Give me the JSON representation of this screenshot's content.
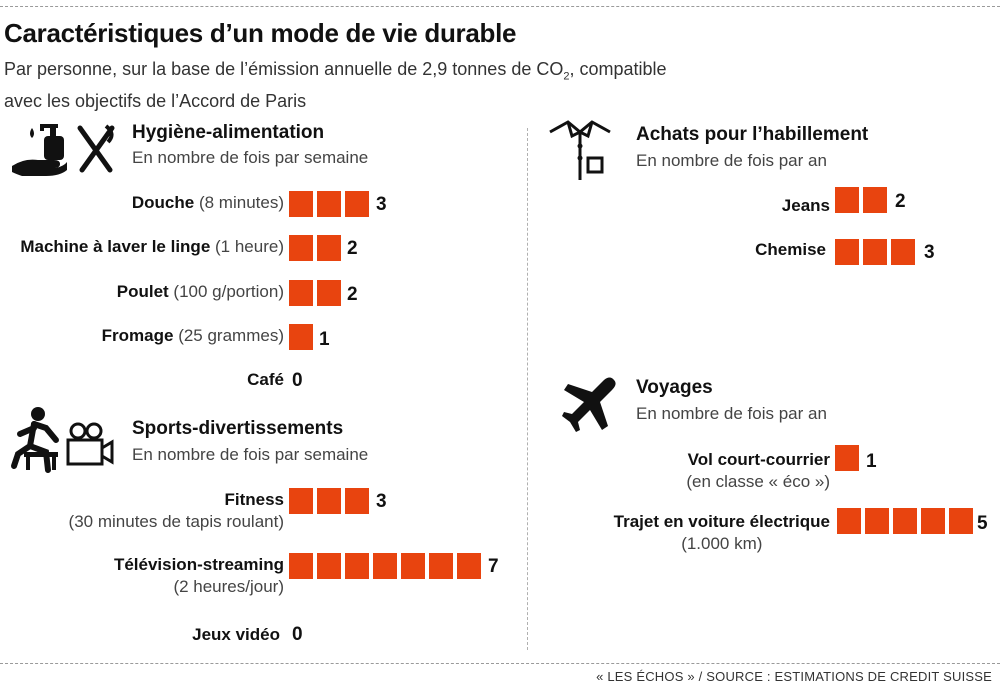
{
  "title": "Caractéristiques d’un mode de vie durable",
  "subtitle": {
    "line1_before": "Par personne, sur la base de l’émission annuelle de 2,9 tonnes de CO",
    "line1_sub": "2",
    "line1_after": ", compatible",
    "line2": "avec les objectifs de l’Accord de Paris"
  },
  "source": "« LES ÉCHOS » / SOURCE : ESTIMATIONS DE CREDIT SUISSE",
  "colors": {
    "bar": "#e8440f",
    "text": "#111111",
    "muted": "#444444"
  },
  "icons": [
    "hand-soap-icon",
    "cutlery-icon",
    "runner-icon",
    "video-camera-icon",
    "shirt-icon",
    "airplane-icon"
  ],
  "chart_data": [
    {
      "type": "bar",
      "orientation": "horizontal",
      "title": "Hygiène-alimentation",
      "subtitle": "En nombre de fois par semaine",
      "items": [
        {
          "label": "Douche",
          "detail": "(8 minutes)",
          "value": 3
        },
        {
          "label": "Machine à laver le linge",
          "detail": "(1 heure)",
          "value": 2
        },
        {
          "label": "Poulet",
          "detail": "(100 g/portion)",
          "value": 2
        },
        {
          "label": "Fromage",
          "detail": "(25 grammes)",
          "value": 1
        },
        {
          "label": "Café",
          "detail": "",
          "value": 0
        }
      ]
    },
    {
      "type": "bar",
      "orientation": "horizontal",
      "title": "Sports-divertissements",
      "subtitle": "En nombre de fois par semaine",
      "items": [
        {
          "label": "Fitness",
          "sublabel": "(30 minutes de tapis roulant)",
          "value": 3
        },
        {
          "label": "Télévision-streaming",
          "sublabel": "(2 heures/jour)",
          "value": 7
        },
        {
          "label": "Jeux vidéo",
          "sublabel": "",
          "value": 0
        }
      ]
    },
    {
      "type": "bar",
      "orientation": "horizontal",
      "title": "Achats pour l’habillement",
      "subtitle": "En nombre de fois par an",
      "items": [
        {
          "label": "Jeans",
          "value": 2
        },
        {
          "label": "Chemise",
          "value": 3
        }
      ]
    },
    {
      "type": "bar",
      "orientation": "horizontal",
      "title": "Voyages",
      "subtitle": "En nombre de fois par an",
      "items": [
        {
          "label": "Vol court-courrier",
          "sublabel": "(en classe « éco »)",
          "value": 1
        },
        {
          "label": "Trajet en voiture électrique",
          "sublabel": "(1.000 km)",
          "value": 5
        }
      ]
    }
  ]
}
